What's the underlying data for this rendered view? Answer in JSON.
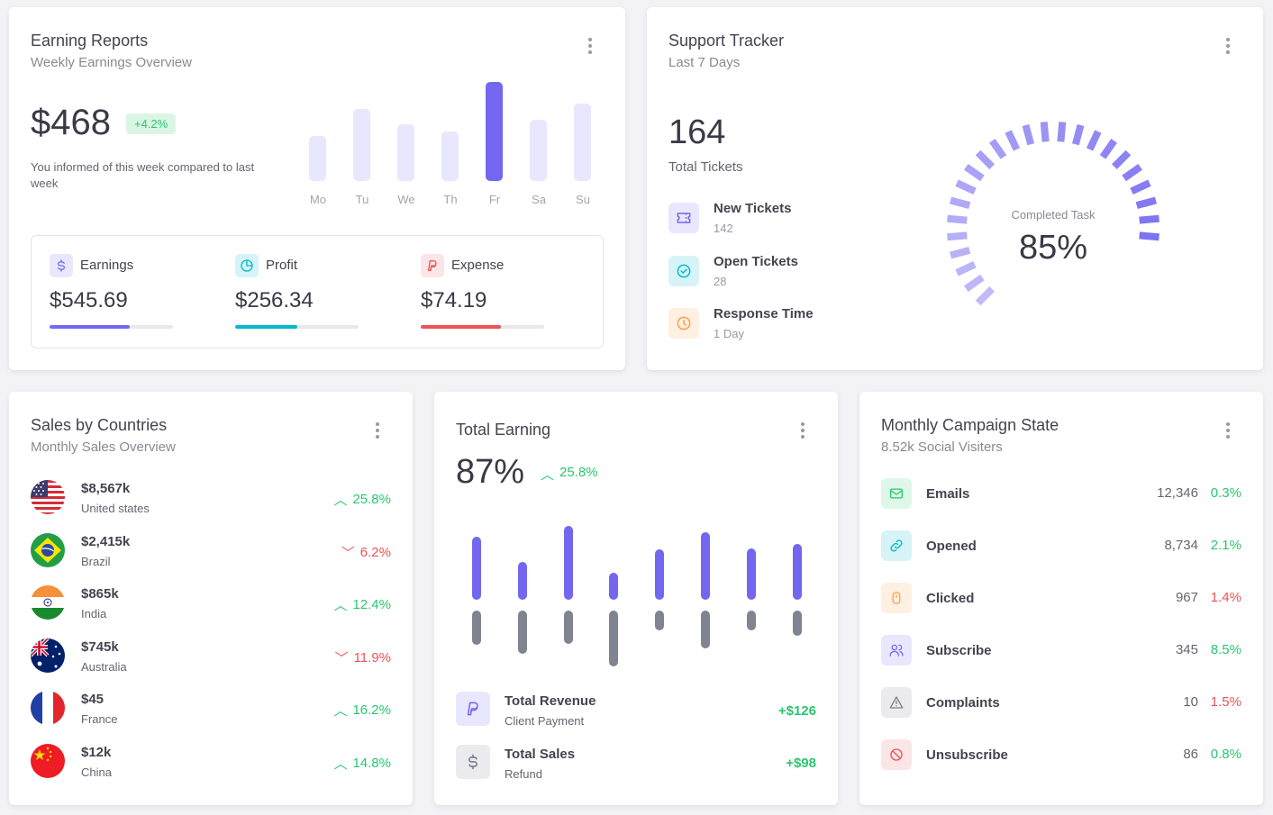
{
  "earning_reports": {
    "title": "Earning Reports",
    "subtitle": "Weekly Earnings Overview",
    "amount": "$468",
    "change": "+4.2%",
    "note": "You informed of this week compared to last week",
    "chart_data": {
      "type": "bar",
      "categories": [
        "Mo",
        "Tu",
        "We",
        "Th",
        "Fr",
        "Sa",
        "Su"
      ],
      "values": [
        45,
        73,
        57,
        50,
        100,
        62,
        78
      ],
      "highlight": "Fr",
      "color": "#7367f0",
      "muted_color": "#e9e7fd"
    },
    "stats": [
      {
        "label": "Earnings",
        "amount": "$545.69",
        "progress": 0.65,
        "color": "#7367f0",
        "icon": "dollar-icon"
      },
      {
        "label": "Profit",
        "amount": "$256.34",
        "progress": 0.5,
        "color": "#00bad1",
        "icon": "pie-chart-icon"
      },
      {
        "label": "Expense",
        "amount": "$74.19",
        "progress": 0.65,
        "color": "#ea5455",
        "icon": "paypal-icon"
      }
    ]
  },
  "support_tracker": {
    "title": "Support Tracker",
    "subtitle": "Last 7 Days",
    "total": "164",
    "total_label": "Total Tickets",
    "rows": [
      {
        "title": "New Tickets",
        "value": "142",
        "icon": "ticket-icon",
        "color": "#7367f0"
      },
      {
        "title": "Open Tickets",
        "value": "28",
        "icon": "circle-check-icon",
        "color": "#00bad1"
      },
      {
        "title": "Response Time",
        "value": "1 Day",
        "icon": "clock-icon",
        "color": "#ff9f43"
      }
    ],
    "gauge": {
      "label": "Completed Task",
      "value": "85%",
      "progress": 0.85
    }
  },
  "sales_countries": {
    "title": "Sales by Countries",
    "subtitle": "Monthly Sales Overview",
    "rows": [
      {
        "amount": "$8,567k",
        "country": "United states",
        "change": "25.8%",
        "dir": "up",
        "flag": "us-flag"
      },
      {
        "amount": "$2,415k",
        "country": "Brazil",
        "change": "6.2%",
        "dir": "down",
        "flag": "br-flag"
      },
      {
        "amount": "$865k",
        "country": "India",
        "change": "12.4%",
        "dir": "up",
        "flag": "in-flag"
      },
      {
        "amount": "$745k",
        "country": "Australia",
        "change": "11.9%",
        "dir": "down",
        "flag": "au-flag"
      },
      {
        "amount": "$45",
        "country": "France",
        "change": "16.2%",
        "dir": "up",
        "flag": "fr-flag"
      },
      {
        "amount": "$12k",
        "country": "China",
        "change": "14.8%",
        "dir": "up",
        "flag": "cn-flag"
      }
    ]
  },
  "total_earning": {
    "title": "Total Earning",
    "percent": "87%",
    "change": "25.8%",
    "chart_data": {
      "type": "bar",
      "series": [
        {
          "values": [
            70,
            42,
            82,
            30,
            56,
            75,
            57,
            62
          ],
          "color": "#7367f0"
        },
        {
          "values": [
            38,
            48,
            37,
            62,
            22,
            42,
            22,
            28
          ],
          "color": "#808390"
        }
      ]
    },
    "rows": [
      {
        "title": "Total Revenue",
        "sub": "Client Payment",
        "value": "+$126",
        "icon": "paypal-icon"
      },
      {
        "title": "Total Sales",
        "sub": "Refund",
        "value": "+$98",
        "icon": "dollar-icon"
      }
    ]
  },
  "campaign": {
    "title": "Monthly Campaign State",
    "subtitle": "8.52k Social Visiters",
    "rows": [
      {
        "label": "Emails",
        "count": "12,346",
        "pct": "0.3%",
        "dir": "up",
        "icon": "mail-icon",
        "color": "#28c76f",
        "bg": "#dff7e9"
      },
      {
        "label": "Opened",
        "count": "8,734",
        "pct": "2.1%",
        "dir": "up",
        "icon": "link-icon",
        "color": "#00bad1",
        "bg": "#d6f4f8"
      },
      {
        "label": "Clicked",
        "count": "967",
        "pct": "1.4%",
        "dir": "down",
        "icon": "mouse-icon",
        "color": "#ff9f43",
        "bg": "#fff0e1"
      },
      {
        "label": "Subscribe",
        "count": "345",
        "pct": "8.5%",
        "dir": "up",
        "icon": "users-icon",
        "color": "#7367f0",
        "bg": "#e9e7fd"
      },
      {
        "label": "Complaints",
        "count": "10",
        "pct": "1.5%",
        "dir": "down",
        "icon": "alert-triangle-icon",
        "color": "#808390",
        "bg": "#ebebed"
      },
      {
        "label": "Unsubscribe",
        "count": "86",
        "pct": "0.8%",
        "dir": "up",
        "icon": "ban-icon",
        "color": "#ea5455",
        "bg": "#fce5e6"
      }
    ]
  }
}
